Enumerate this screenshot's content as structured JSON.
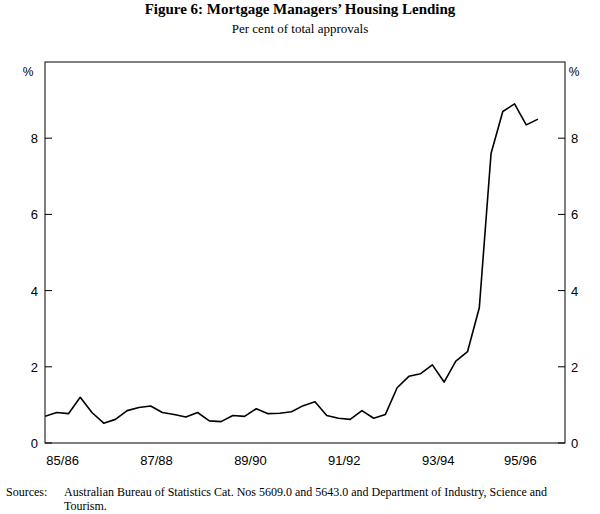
{
  "chart_data": {
    "type": "line",
    "title": "Figure 6: Mortgage Managers’ Housing Lending",
    "subtitle": "Per cent of total approvals",
    "y_label": "%",
    "source_label": "Sources:",
    "source": "Australian Bureau of Statistics Cat. Nos 5609.0 and 5643.0 and Department of Industry, Science and Tourism.",
    "categories": [
      null,
      "85/86",
      null,
      null,
      null,
      null,
      null,
      null,
      null,
      "87/88",
      null,
      null,
      null,
      null,
      null,
      null,
      null,
      "89/90",
      null,
      null,
      null,
      null,
      null,
      null,
      null,
      "91/92",
      null,
      null,
      null,
      null,
      null,
      null,
      null,
      "93/94",
      null,
      null,
      null,
      null,
      null,
      null,
      "95/96",
      null,
      null
    ],
    "values": [
      0.7,
      0.8,
      0.77,
      1.2,
      0.8,
      0.52,
      0.62,
      0.85,
      0.93,
      0.97,
      0.8,
      0.75,
      0.68,
      0.8,
      0.58,
      0.56,
      0.72,
      0.7,
      0.9,
      0.77,
      0.78,
      0.82,
      0.98,
      1.08,
      0.72,
      0.65,
      0.62,
      0.85,
      0.65,
      0.75,
      1.45,
      1.75,
      1.82,
      2.05,
      1.6,
      2.15,
      2.4,
      3.55,
      7.6,
      8.7,
      8.9,
      8.35,
      8.5
    ],
    "color": "#000000",
    "ylim": [
      0,
      10
    ],
    "yticks": [
      0,
      2,
      4,
      6,
      8
    ],
    "grid": false
  }
}
